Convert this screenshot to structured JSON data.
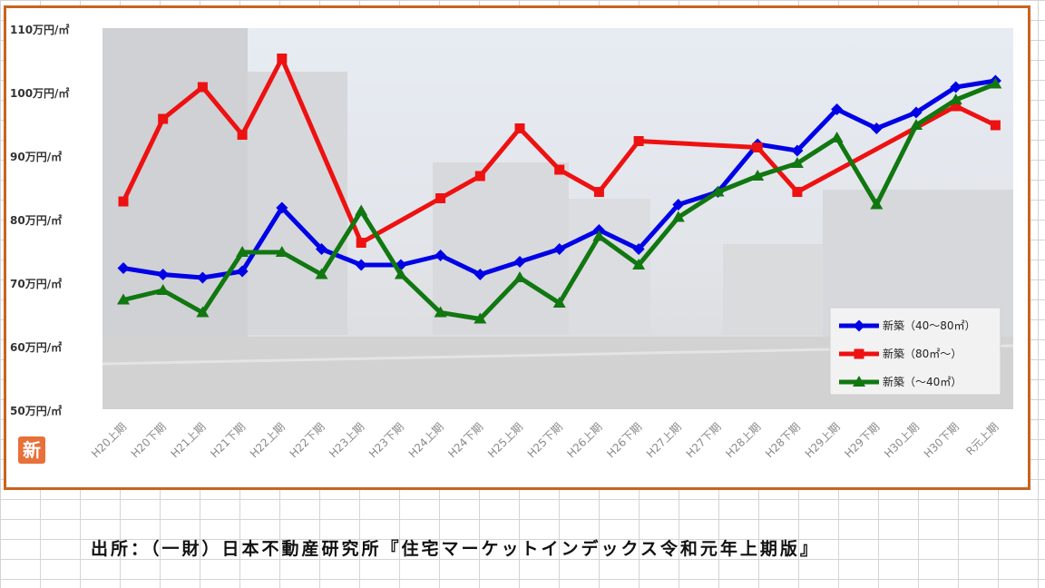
{
  "logo_text": "新",
  "source_note": "出所：（一財）日本不動産研究所『住宅マーケットインデックス令和元年上期版』",
  "chart_data": {
    "type": "line",
    "title": "",
    "xlabel": "",
    "ylabel": "",
    "ylim": [
      50,
      110
    ],
    "y_ticks": [
      {
        "value": 110,
        "label": "110万円/㎡"
      },
      {
        "value": 100,
        "label": "100万円/㎡"
      },
      {
        "value": 90,
        "label": "90万円/㎡"
      },
      {
        "value": 80,
        "label": "80万円/㎡"
      },
      {
        "value": 70,
        "label": "70万円/㎡"
      },
      {
        "value": 60,
        "label": "60万円/㎡"
      },
      {
        "value": 50,
        "label": "50万円/㎡"
      }
    ],
    "grid": false,
    "legend_position": "bottom-right",
    "categories": [
      "H20上期",
      "H20下期",
      "H21上期",
      "H21下期",
      "H22上期",
      "H22下期",
      "H23上期",
      "H23下期",
      "H24上期",
      "H24下期",
      "H25上期",
      "H25下期",
      "H26上期",
      "H26下期",
      "H27上期",
      "H27下期",
      "H28上期",
      "H28下期",
      "H29上期",
      "H29下期",
      "H30上期",
      "H30下期",
      "R元上期"
    ],
    "series": [
      {
        "name": "新築（40〜80㎡）",
        "color": "#0000e6",
        "marker": "diamond",
        "values": [
          72.5,
          71.5,
          71.0,
          72.0,
          82.0,
          75.5,
          73.0,
          73.0,
          74.5,
          71.5,
          73.5,
          75.5,
          78.5,
          75.5,
          82.5,
          84.5,
          92.0,
          91.0,
          97.5,
          94.5,
          97.0,
          101.0,
          102.0
        ]
      },
      {
        "name": "新築（80㎡〜）",
        "color": "#ee1111",
        "marker": "square",
        "values": [
          83.0,
          96.0,
          101.0,
          93.5,
          105.5,
          null,
          76.5,
          null,
          83.5,
          87.0,
          94.5,
          88.0,
          84.5,
          92.5,
          null,
          null,
          91.5,
          84.5,
          null,
          null,
          null,
          98.0,
          95.0
        ]
      },
      {
        "name": "新築（〜40㎡）",
        "color": "#117711",
        "marker": "triangle",
        "values": [
          67.5,
          69.0,
          65.5,
          75.0,
          75.0,
          71.5,
          81.5,
          71.5,
          65.5,
          64.5,
          71.0,
          67.0,
          77.5,
          73.0,
          80.5,
          84.5,
          87.0,
          89.0,
          93.0,
          82.5,
          95.0,
          99.0,
          101.5
        ]
      }
    ]
  }
}
